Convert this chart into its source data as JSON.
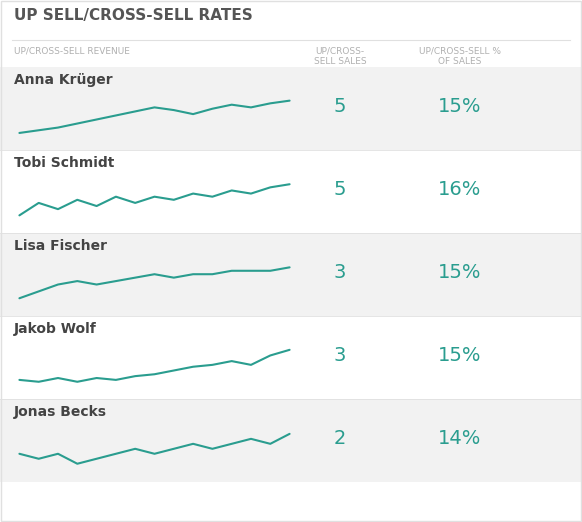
{
  "title": "UP SELL/CROSS-SELL RATES",
  "col1_header": "UP/CROSS-SELL REVENUE",
  "col2_header": "UP/CROSS-\nSELL SALES",
  "col3_header": "UP/CROSS-SELL %\nOF SALES",
  "rows": [
    {
      "name": "Anna Krüger",
      "sales": "5",
      "pct": "15%",
      "sparkline": [
        1.0,
        1.2,
        1.4,
        1.7,
        2.0,
        2.3,
        2.6,
        2.9,
        2.7,
        2.4,
        2.8,
        3.1,
        2.9,
        3.2,
        3.4
      ],
      "bg": "#f2f2f2"
    },
    {
      "name": "Tobi Schmidt",
      "sales": "5",
      "pct": "16%",
      "sparkline": [
        1.0,
        1.4,
        1.2,
        1.5,
        1.3,
        1.6,
        1.4,
        1.6,
        1.5,
        1.7,
        1.6,
        1.8,
        1.7,
        1.9,
        2.0
      ],
      "bg": "#ffffff"
    },
    {
      "name": "Lisa Fischer",
      "sales": "3",
      "pct": "15%",
      "sparkline": [
        1.2,
        1.4,
        1.6,
        1.7,
        1.6,
        1.7,
        1.8,
        1.9,
        1.8,
        1.9,
        1.9,
        2.0,
        2.0,
        2.0,
        2.1
      ],
      "bg": "#f2f2f2"
    },
    {
      "name": "Jakob Wolf",
      "sales": "3",
      "pct": "15%",
      "sparkline": [
        1.3,
        1.2,
        1.4,
        1.2,
        1.4,
        1.3,
        1.5,
        1.6,
        1.8,
        2.0,
        2.1,
        2.3,
        2.1,
        2.6,
        2.9
      ],
      "bg": "#ffffff"
    },
    {
      "name": "Jonas Becks",
      "sales": "2",
      "pct": "14%",
      "sparkline": [
        1.5,
        1.4,
        1.5,
        1.3,
        1.4,
        1.5,
        1.6,
        1.5,
        1.6,
        1.7,
        1.6,
        1.7,
        1.8,
        1.7,
        1.9
      ],
      "bg": "#f2f2f2"
    }
  ],
  "teal_color": "#2a9d8f",
  "title_color": "#555555",
  "header_color": "#b0b0b0",
  "name_color": "#444444",
  "fig_bg": "#ffffff",
  "border_color": "#e0e0e0",
  "title_fontsize": 11,
  "header_fontsize": 6.5,
  "name_fontsize": 10,
  "value_fontsize": 14,
  "sparkline_color": "#2a9d8f",
  "sparkline_lw": 1.5,
  "fig_width": 5.82,
  "fig_height": 5.22,
  "dpi": 100
}
